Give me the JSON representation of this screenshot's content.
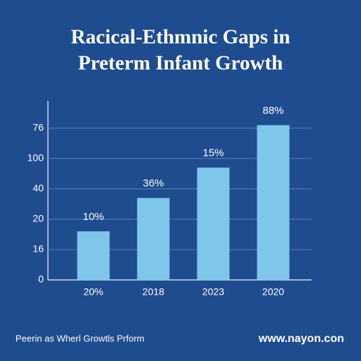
{
  "chart_data": {
    "type": "bar",
    "title": [
      "Racical-Ethmnic Gaps in",
      "Preterm Infant Growth"
    ],
    "categories": [
      "20%",
      "2018",
      "2023",
      "2020"
    ],
    "values": [
      1.6,
      2.7,
      3.7,
      5.1
    ],
    "bar_labels": [
      "10%",
      "36%",
      "15%",
      "88%"
    ],
    "color": "#7ec6ea",
    "ylim": [
      0,
      5.9
    ],
    "yticks": [
      {
        "value": 0,
        "label": "0"
      },
      {
        "value": 1,
        "label": "16"
      },
      {
        "value": 2,
        "label": "20"
      },
      {
        "value": 3,
        "label": "40"
      },
      {
        "value": 4,
        "label": "100"
      },
      {
        "value": 5,
        "label": "76"
      }
    ],
    "grid": true,
    "footer": {
      "left": "Peerin as Wherl Growtls Prform",
      "right": "www.nayon.con"
    }
  }
}
